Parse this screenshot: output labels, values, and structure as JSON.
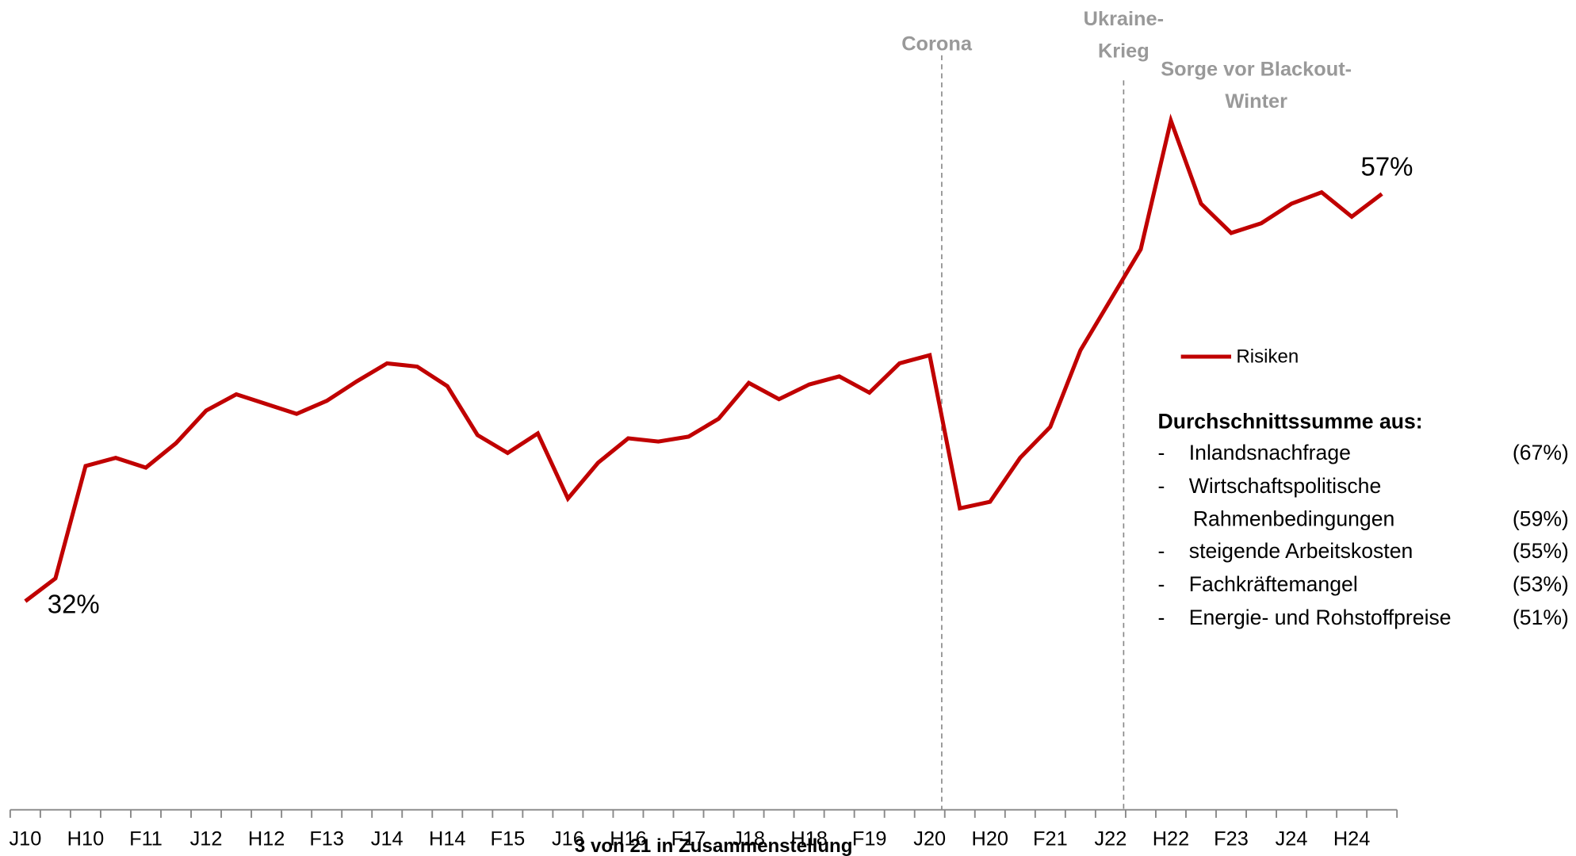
{
  "chart_data": {
    "type": "line",
    "categories": [
      "J10",
      null,
      "H10",
      null,
      "F11",
      null,
      "J12",
      null,
      "H12",
      null,
      "F13",
      null,
      "J14",
      null,
      "H14",
      null,
      "F15",
      null,
      "J16",
      null,
      "H16",
      null,
      "F17",
      null,
      "J18",
      null,
      "H18",
      null,
      "F19",
      null,
      "J20",
      null,
      "H20",
      null,
      "F21",
      null,
      "J22",
      null,
      "H22",
      null,
      "F23",
      null,
      "J24",
      null,
      "H24",
      null
    ],
    "series": [
      {
        "name": "Risiken",
        "color": "#c00000",
        "values": [
          32,
          33.4,
          40.3,
          40.8,
          40.2,
          41.7,
          43.7,
          44.7,
          44.1,
          43.5,
          44.3,
          45.5,
          46.6,
          46.4,
          45.2,
          42.2,
          41.1,
          42.3,
          38.3,
          40.5,
          42.0,
          41.8,
          42.1,
          43.2,
          45.4,
          44.4,
          45.3,
          45.8,
          44.8,
          46.6,
          47.1,
          37.7,
          38.1,
          40.8,
          42.7,
          47.4,
          50.5,
          53.6,
          61.5,
          56.4,
          54.6,
          55.2,
          56.4,
          57.1,
          55.6,
          57
        ],
        "value_labels": [
          "32%",
          null,
          null,
          null,
          null,
          null,
          null,
          null,
          null,
          null,
          null,
          null,
          null,
          null,
          null,
          null,
          null,
          null,
          null,
          null,
          null,
          null,
          null,
          null,
          null,
          null,
          null,
          null,
          null,
          null,
          null,
          null,
          null,
          null,
          null,
          null,
          null,
          null,
          null,
          null,
          null,
          null,
          null,
          null,
          null,
          "57%"
        ]
      }
    ],
    "ylim": [
      19.2,
      68.9
    ],
    "annotations": [
      {
        "lines": [
          "Corona"
        ]
      },
      {
        "lines": [
          "Ukraine-",
          "Krieg"
        ]
      },
      {
        "lines": [
          "Sorge vor Blackout-",
          "Winter"
        ]
      }
    ],
    "notes": {
      "title": "Durchschnittssumme aus:",
      "items": [
        {
          "lines": [
            "Inlandsnachfrage"
          ],
          "share": "(67%)"
        },
        {
          "lines": [
            "Wirtschaftspolitische",
            "Rahmenbedingungen"
          ],
          "share": "(59%)"
        },
        {
          "lines": [
            "steigende Arbeitskosten"
          ],
          "share": "(55%)"
        },
        {
          "lines": [
            "Fachkräftemangel"
          ],
          "share": "(53%)"
        },
        {
          "lines": [
            "Energie- und Rohstoffpreise"
          ],
          "share": "(51%)"
        }
      ]
    },
    "overlay": "3 von 21 in Zusammenstellung"
  }
}
